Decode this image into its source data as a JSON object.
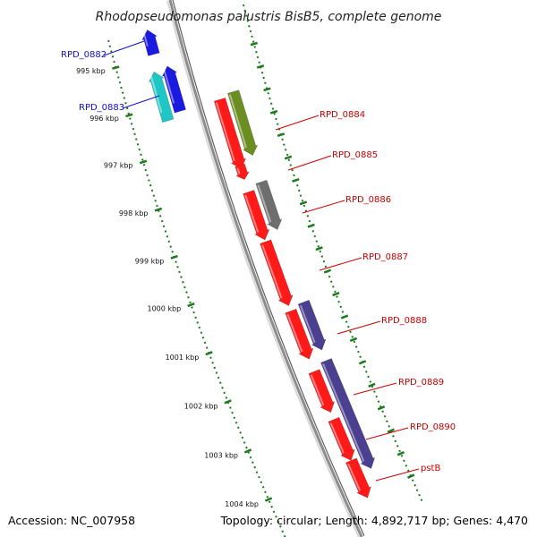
{
  "title": "Rhodopseudomonas palustris BisB5, complete genome",
  "footer": {
    "accession": "Accession: NC_007958",
    "summary": "Topology: circular; Length: 4,892,717 bp; Genes: 4,470"
  },
  "colors": {
    "backbone": "#8c8c8c",
    "tick_line": "#1e7a1e",
    "label_blue": "#1010c8",
    "label_red": "#cc0000",
    "leader_blue": "#1010c8",
    "leader_red": "#cc0000"
  },
  "kbp_ticks": [
    {
      "text": "995 kbp"
    },
    {
      "text": "996 kbp"
    },
    {
      "text": "997 kbp"
    },
    {
      "text": "998 kbp"
    },
    {
      "text": "999 kbp"
    },
    {
      "text": "1000 kbp"
    },
    {
      "text": "1001 kbp"
    },
    {
      "text": "1002 kbp"
    },
    {
      "text": "1003 kbp"
    },
    {
      "text": "1004 kbp"
    }
  ],
  "gene_labels": [
    {
      "text": "RPD_0882",
      "side": "left",
      "color": "blue"
    },
    {
      "text": "RPD_0883",
      "side": "left",
      "color": "blue"
    },
    {
      "text": "RPD_0884",
      "side": "right",
      "color": "red"
    },
    {
      "text": "RPD_0885",
      "side": "right",
      "color": "red"
    },
    {
      "text": "RPD_0886",
      "side": "right",
      "color": "red"
    },
    {
      "text": "RPD_0887",
      "side": "right",
      "color": "red"
    },
    {
      "text": "RPD_0888",
      "side": "right",
      "color": "red"
    },
    {
      "text": "RPD_0889",
      "side": "right",
      "color": "red"
    },
    {
      "text": "RPD_0890",
      "side": "right",
      "color": "red"
    },
    {
      "text": "pstB",
      "side": "right",
      "color": "red"
    }
  ],
  "features": [
    {
      "name": "RPD_0882",
      "strand": "reverse",
      "color": "#1a1ae0"
    },
    {
      "name": "RPD_0883",
      "strand": "reverse",
      "color": "#1a1ae0"
    },
    {
      "name": "RPD_0883-cog",
      "strand": "reverse",
      "color": "#1fc6c6"
    },
    {
      "name": "RPD_0884",
      "strand": "forward",
      "color": "#ff1a1a"
    },
    {
      "name": "RPD_0884-cog",
      "strand": "forward",
      "color": "#6b8e23"
    },
    {
      "name": "RPD_0885",
      "strand": "forward",
      "color": "#ff1a1a"
    },
    {
      "name": "RPD_0886",
      "strand": "forward",
      "color": "#ff1a1a"
    },
    {
      "name": "RPD_0886-cog",
      "strand": "forward",
      "color": "#6e6e6e"
    },
    {
      "name": "RPD_0887",
      "strand": "forward",
      "color": "#ff1a1a"
    },
    {
      "name": "RPD_0888",
      "strand": "forward",
      "color": "#ff1a1a"
    },
    {
      "name": "RPD_0888-cog",
      "strand": "forward",
      "color": "#4b3f8f"
    },
    {
      "name": "RPD_0889",
      "strand": "forward",
      "color": "#ff1a1a"
    },
    {
      "name": "RPD_0890",
      "strand": "forward",
      "color": "#ff1a1a"
    },
    {
      "name": "RPD_0889-0890-cog",
      "strand": "forward",
      "color": "#4b3f8f"
    },
    {
      "name": "pstB",
      "strand": "forward",
      "color": "#ff1a1a"
    }
  ]
}
